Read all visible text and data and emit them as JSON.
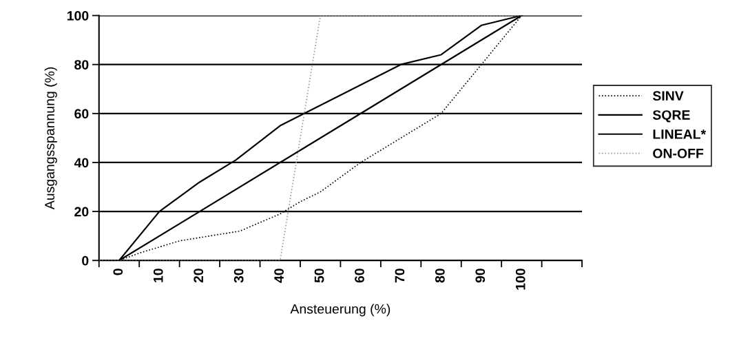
{
  "chart_data": {
    "type": "line",
    "xlabel": "Ansteuerung (%)",
    "ylabel": "Ausgangsspannung (%)",
    "xlim": [
      -5,
      115
    ],
    "xticks": [
      {
        "value": -5,
        "label": null
      },
      {
        "value": 0,
        "label": "0"
      },
      {
        "value": 5,
        "label": null
      },
      {
        "value": 10,
        "label": "10"
      },
      {
        "value": 15,
        "label": null
      },
      {
        "value": 20,
        "label": "20"
      },
      {
        "value": 25,
        "label": null
      },
      {
        "value": 30,
        "label": "30"
      },
      {
        "value": 35,
        "label": null
      },
      {
        "value": 40,
        "label": "40"
      },
      {
        "value": 45,
        "label": null
      },
      {
        "value": 50,
        "label": "50"
      },
      {
        "value": 55,
        "label": null
      },
      {
        "value": 60,
        "label": "60"
      },
      {
        "value": 65,
        "label": null
      },
      {
        "value": 70,
        "label": "70"
      },
      {
        "value": 75,
        "label": null
      },
      {
        "value": 80,
        "label": "80"
      },
      {
        "value": 85,
        "label": null
      },
      {
        "value": 90,
        "label": "90"
      },
      {
        "value": 95,
        "label": null
      },
      {
        "value": 100,
        "label": "100"
      },
      {
        "value": 105,
        "label": null
      },
      {
        "value": 115,
        "label": null
      }
    ],
    "ylim": [
      0,
      100
    ],
    "yticks": [
      0,
      20,
      40,
      60,
      80,
      100
    ],
    "grid": "y",
    "legend": "right",
    "marker": "none",
    "series": [
      {
        "name": "SINV",
        "color": "#000000",
        "line_style": "dotted",
        "x": [
          -5,
          0,
          5,
          15,
          30,
          40,
          45,
          50,
          60,
          70,
          80,
          90,
          100
        ],
        "values": [
          0,
          0,
          3,
          8,
          12,
          19,
          24,
          28,
          40,
          50,
          60,
          80,
          100
        ]
      },
      {
        "name": "SQRE",
        "color": "#000000",
        "line_style": "solid",
        "x": [
          -5,
          0,
          10,
          20,
          29,
          40,
          46,
          70,
          80,
          90,
          100
        ],
        "values": [
          0,
          0,
          20,
          32,
          41,
          55,
          60,
          80,
          84,
          96,
          100
        ]
      },
      {
        "name": "LINEAL*",
        "color": "#000000",
        "line_style": "solid",
        "x": [
          -5,
          0,
          100
        ],
        "values": [
          0,
          0,
          100
        ]
      },
      {
        "name": "ON-OFF",
        "color": "#9a9a9a",
        "line_style": "dotted",
        "x": [
          -5,
          40,
          50,
          100
        ],
        "values": [
          0,
          0,
          100,
          100
        ]
      }
    ]
  }
}
